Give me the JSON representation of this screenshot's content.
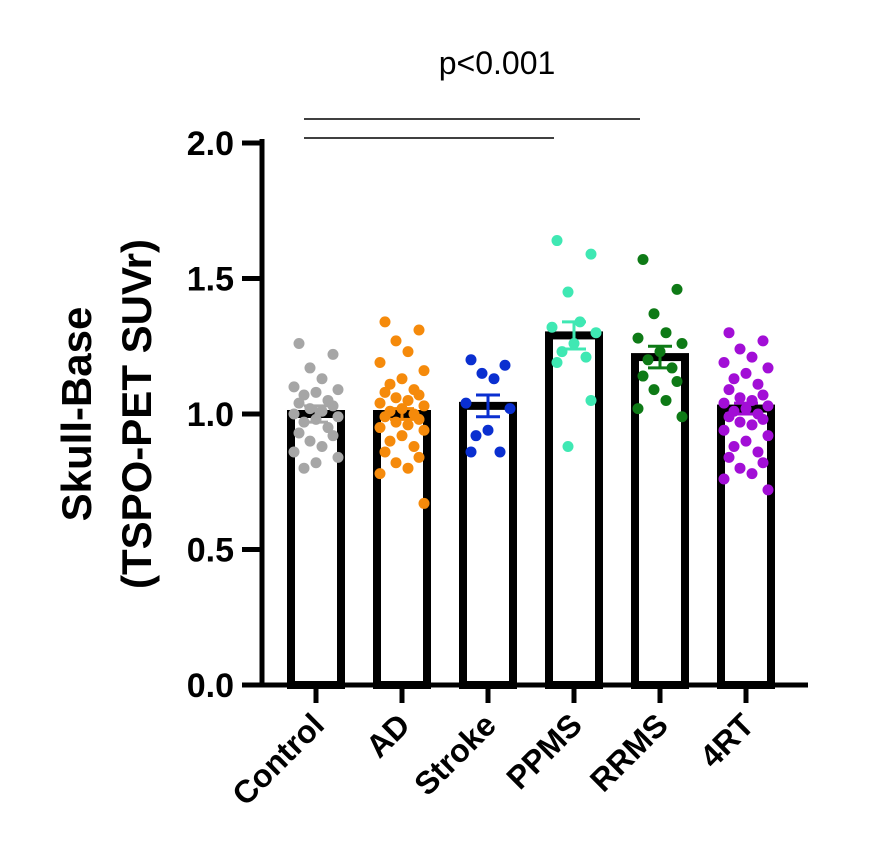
{
  "chart_data": {
    "type": "bar",
    "title": "",
    "ylabel_lines": [
      "Skull-Base",
      "(TSPO-PET SUVr)"
    ],
    "xlabel": "",
    "ylim": [
      0,
      2.0
    ],
    "yticks": [
      "0.0",
      "0.5",
      "1.0",
      "1.5",
      "2.0"
    ],
    "categories": [
      "Control",
      "AD",
      "Stroke",
      "PPMS",
      "RRMS",
      "4RT"
    ],
    "means": [
      1.0,
      1.0,
      1.03,
      1.29,
      1.21,
      1.02
    ],
    "sem": [
      0.03,
      0.02,
      0.04,
      0.05,
      0.04,
      0.02
    ],
    "colors": [
      "#a6a6a6",
      "#f58a0b",
      "#0a2fd0",
      "#3fe8b3",
      "#0e7a16",
      "#a20ed6"
    ],
    "points": [
      [
        1.26,
        1.22,
        1.17,
        1.13,
        1.1,
        1.09,
        1.08,
        1.07,
        1.05,
        1.04,
        1.03,
        1.02,
        1.01,
        1.0,
        0.99,
        0.98,
        0.97,
        0.95,
        0.93,
        0.92,
        0.9,
        0.88,
        0.86,
        0.84,
        0.82,
        0.8
      ],
      [
        1.34,
        1.31,
        1.27,
        1.23,
        1.19,
        1.16,
        1.13,
        1.11,
        1.09,
        1.08,
        1.07,
        1.06,
        1.05,
        1.04,
        1.03,
        1.02,
        1.01,
        1.0,
        0.99,
        0.98,
        0.97,
        0.96,
        0.95,
        0.94,
        0.92,
        0.9,
        0.88,
        0.86,
        0.84,
        0.82,
        0.8,
        0.78,
        0.67
      ],
      [
        1.2,
        1.18,
        1.15,
        1.13,
        1.04,
        1.02,
        0.94,
        0.92,
        0.86,
        0.86
      ],
      [
        1.64,
        1.59,
        1.45,
        1.34,
        1.32,
        1.3,
        1.26,
        1.23,
        1.21,
        1.19,
        1.05,
        0.88
      ],
      [
        1.57,
        1.46,
        1.37,
        1.3,
        1.28,
        1.26,
        1.23,
        1.2,
        1.17,
        1.14,
        1.12,
        1.09,
        1.05,
        1.02,
        0.99
      ],
      [
        1.3,
        1.27,
        1.24,
        1.21,
        1.19,
        1.17,
        1.15,
        1.13,
        1.11,
        1.09,
        1.07,
        1.06,
        1.05,
        1.04,
        1.03,
        1.02,
        1.01,
        1.0,
        0.99,
        0.98,
        0.97,
        0.96,
        0.94,
        0.92,
        0.9,
        0.88,
        0.86,
        0.84,
        0.82,
        0.8,
        0.78,
        0.76,
        0.72
      ]
    ],
    "annotation": "p<0.001",
    "comparison_bars": [
      {
        "from": "Control",
        "to": "PPMS"
      },
      {
        "from": "Control",
        "to": "RRMS"
      }
    ],
    "grid": false,
    "legend": "none"
  }
}
